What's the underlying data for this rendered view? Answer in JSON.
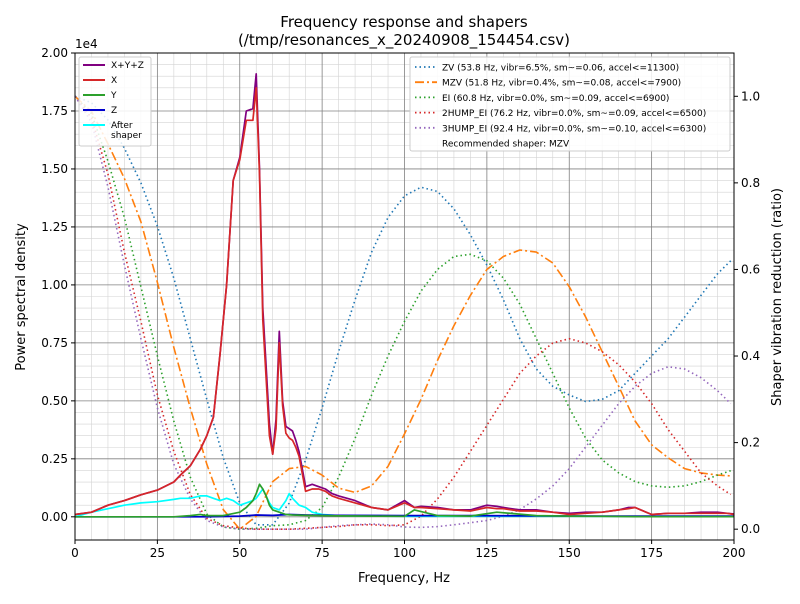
{
  "chart_data": {
    "type": "line",
    "title": "Frequency response and shapers",
    "subtitle": "(/tmp/resonances_x_20240908_154454.csv)",
    "xlabel": "Frequency, Hz",
    "ylabel": "Power spectral density",
    "y2label": "Shaper vibration reduction (ratio)",
    "y_offset_text": "1e4",
    "xlim": [
      0,
      200
    ],
    "ylim": [
      -1000,
      20000
    ],
    "y2lim": [
      -0.025,
      1.1
    ],
    "grid": true,
    "x_ticks": [
      "0",
      "25",
      "50",
      "75",
      "100",
      "125",
      "150",
      "175",
      "200"
    ],
    "y_ticks": [
      "0.00",
      "0.25",
      "0.50",
      "0.75",
      "1.00",
      "1.25",
      "1.50",
      "1.75",
      "2.00"
    ],
    "y2_ticks": [
      "0.0",
      "0.2",
      "0.4",
      "0.6",
      "0.8",
      "1.0"
    ],
    "legend_left_position": "upper left",
    "legend_right_position": "upper right",
    "series": [
      {
        "name": "X+Y+Z",
        "axis": "left",
        "color": "#800080",
        "dash": "solid",
        "x": [
          0,
          5,
          10,
          15,
          20,
          25,
          30,
          32,
          35,
          38,
          40,
          42,
          44,
          46,
          48,
          50,
          52,
          54,
          55,
          56,
          57,
          58,
          59,
          60,
          61,
          62,
          63,
          64,
          65,
          66,
          67,
          68,
          70,
          72,
          74,
          76,
          78,
          80,
          85,
          90,
          95,
          100,
          103,
          105,
          110,
          115,
          120,
          125,
          128,
          130,
          135,
          140,
          145,
          150,
          155,
          160,
          165,
          168,
          170,
          175,
          180,
          185,
          190,
          195,
          198,
          200
        ],
        "y": [
          100,
          200,
          500,
          700,
          950,
          1150,
          1500,
          1800,
          2200,
          2900,
          3500,
          4300,
          7000,
          10000,
          14500,
          15500,
          17500,
          17600,
          19100,
          15000,
          9000,
          6500,
          4000,
          2700,
          4200,
          8000,
          5000,
          3900,
          3800,
          3700,
          3300,
          2800,
          1300,
          1400,
          1300,
          1200,
          1000,
          900,
          700,
          400,
          300,
          700,
          400,
          450,
          400,
          300,
          300,
          500,
          450,
          400,
          300,
          300,
          200,
          150,
          200,
          200,
          300,
          400,
          400,
          100,
          150,
          150,
          200,
          200,
          150,
          120
        ]
      },
      {
        "name": "X",
        "axis": "left",
        "color": "#d62728",
        "dash": "solid",
        "x": [
          0,
          5,
          10,
          15,
          20,
          25,
          30,
          32,
          35,
          38,
          40,
          42,
          44,
          46,
          48,
          50,
          52,
          54,
          55,
          56,
          57,
          58,
          59,
          60,
          61,
          62,
          63,
          64,
          65,
          66,
          67,
          68,
          70,
          72,
          74,
          76,
          78,
          80,
          85,
          90,
          95,
          100,
          103,
          105,
          110,
          115,
          120,
          125,
          128,
          130,
          135,
          140,
          145,
          150,
          155,
          160,
          165,
          168,
          170,
          175,
          180,
          185,
          190,
          195,
          198,
          200
        ],
        "y": [
          100,
          200,
          500,
          700,
          950,
          1150,
          1500,
          1800,
          2200,
          2900,
          3500,
          4300,
          7000,
          10000,
          14500,
          15400,
          17100,
          17100,
          18500,
          14800,
          8500,
          6000,
          3500,
          2700,
          3800,
          7500,
          4800,
          3600,
          3400,
          3300,
          3000,
          2600,
          1100,
          1200,
          1200,
          1100,
          900,
          800,
          600,
          400,
          300,
          600,
          400,
          400,
          350,
          300,
          250,
          400,
          350,
          350,
          250,
          250,
          200,
          100,
          150,
          200,
          300,
          350,
          400,
          100,
          150,
          150,
          150,
          150,
          150,
          100
        ]
      },
      {
        "name": "Y",
        "axis": "left",
        "color": "#2ca02c",
        "dash": "solid",
        "x": [
          0,
          5,
          10,
          20,
          30,
          35,
          38,
          40,
          45,
          50,
          52,
          54,
          55,
          56,
          57,
          58,
          59,
          60,
          62,
          64,
          66,
          70,
          75,
          80,
          90,
          100,
          103,
          110,
          120,
          128,
          140,
          150,
          160,
          170,
          180,
          190,
          200
        ],
        "y": [
          0,
          0,
          0,
          0,
          0,
          50,
          100,
          50,
          50,
          200,
          400,
          700,
          1000,
          1400,
          1200,
          900,
          500,
          300,
          200,
          100,
          80,
          60,
          50,
          40,
          30,
          20,
          300,
          50,
          30,
          200,
          50,
          30,
          20,
          10,
          10,
          10,
          10
        ]
      },
      {
        "name": "Z",
        "axis": "left",
        "color": "#0000cd",
        "dash": "solid",
        "x": [
          0,
          20,
          40,
          50,
          55,
          60,
          65,
          70,
          80,
          100,
          120,
          140,
          160,
          180,
          200
        ],
        "y": [
          0,
          0,
          0,
          30,
          80,
          60,
          100,
          80,
          60,
          50,
          50,
          40,
          30,
          30,
          30
        ]
      },
      {
        "name": "After\nshaper",
        "axis": "left",
        "color": "#00ffff",
        "dash": "solid",
        "x": [
          0,
          5,
          10,
          15,
          20,
          25,
          30,
          32,
          35,
          38,
          40,
          42,
          44,
          46,
          48,
          50,
          52,
          54,
          55,
          56,
          57,
          58,
          59,
          60,
          62,
          64,
          65,
          66,
          68,
          70,
          72,
          75,
          80,
          90,
          100,
          110,
          120,
          130,
          140,
          150,
          160,
          170,
          180,
          190,
          200
        ],
        "y": [
          0,
          200,
          350,
          500,
          600,
          650,
          750,
          800,
          800,
          900,
          900,
          800,
          700,
          800,
          700,
          500,
          600,
          700,
          800,
          1000,
          1200,
          900,
          600,
          400,
          300,
          700,
          1000,
          800,
          500,
          400,
          200,
          100,
          50,
          30,
          20,
          20,
          20,
          20,
          20,
          20,
          20,
          20,
          10,
          10,
          10
        ]
      },
      {
        "name": "ZV (53.8 Hz, vibr=6.5%, sm~=0.06, accel<=11300)",
        "axis": "right",
        "color": "#1f77b4",
        "dash": "1.5,3",
        "x": [
          0,
          5,
          10,
          15,
          20,
          25,
          30,
          35,
          40,
          45,
          50,
          55,
          60,
          65,
          70,
          75,
          80,
          85,
          90,
          95,
          100,
          105,
          110,
          115,
          120,
          125,
          130,
          135,
          140,
          145,
          150,
          155,
          160,
          165,
          170,
          175,
          180,
          185,
          190,
          195,
          199
        ],
        "y": [
          1.0,
          0.985,
          0.945,
          0.88,
          0.8,
          0.7,
          0.58,
          0.44,
          0.3,
          0.165,
          0.06,
          0.01,
          0.01,
          0.06,
          0.16,
          0.28,
          0.41,
          0.53,
          0.64,
          0.72,
          0.77,
          0.79,
          0.78,
          0.74,
          0.68,
          0.61,
          0.53,
          0.44,
          0.37,
          0.33,
          0.31,
          0.295,
          0.3,
          0.32,
          0.36,
          0.4,
          0.44,
          0.49,
          0.54,
          0.59,
          0.62
        ]
      },
      {
        "name": "MZV (51.8 Hz, vibr=0.4%, sm~=0.08, accel<=7900)",
        "axis": "right",
        "color": "#ff7f0e",
        "dash": "9,3,2,3",
        "x": [
          0,
          5,
          10,
          15,
          20,
          25,
          30,
          35,
          40,
          45,
          50,
          55,
          60,
          65,
          70,
          75,
          80,
          85,
          90,
          95,
          100,
          105,
          110,
          115,
          120,
          125,
          130,
          135,
          140,
          145,
          150,
          155,
          160,
          165,
          170,
          175,
          180,
          185,
          190,
          195,
          199
        ],
        "y": [
          1.0,
          0.965,
          0.89,
          0.81,
          0.71,
          0.57,
          0.42,
          0.28,
          0.15,
          0.045,
          0.0,
          0.03,
          0.11,
          0.14,
          0.145,
          0.125,
          0.095,
          0.085,
          0.1,
          0.145,
          0.22,
          0.3,
          0.39,
          0.47,
          0.54,
          0.6,
          0.63,
          0.645,
          0.64,
          0.615,
          0.56,
          0.49,
          0.41,
          0.33,
          0.25,
          0.195,
          0.165,
          0.14,
          0.13,
          0.125,
          0.123
        ]
      },
      {
        "name": "EI (60.8 Hz, vibr=0.0%, sm~=0.09, accel<=6900)",
        "axis": "right",
        "color": "#2ca02c",
        "dash": "1.5,3",
        "x": [
          0,
          5,
          10,
          15,
          20,
          25,
          30,
          35,
          40,
          45,
          50,
          55,
          60,
          65,
          70,
          75,
          80,
          85,
          90,
          95,
          100,
          105,
          110,
          115,
          120,
          125,
          130,
          135,
          140,
          145,
          150,
          155,
          160,
          165,
          170,
          175,
          180,
          185,
          190,
          195,
          199
        ],
        "y": [
          1.0,
          0.96,
          0.85,
          0.72,
          0.56,
          0.4,
          0.25,
          0.12,
          0.035,
          0.005,
          0.0,
          0.002,
          0.008,
          0.01,
          0.02,
          0.05,
          0.12,
          0.21,
          0.31,
          0.4,
          0.48,
          0.55,
          0.6,
          0.63,
          0.635,
          0.62,
          0.58,
          0.52,
          0.44,
          0.36,
          0.28,
          0.21,
          0.16,
          0.13,
          0.11,
          0.1,
          0.097,
          0.1,
          0.11,
          0.125,
          0.135
        ]
      },
      {
        "name": "2HUMP_EI (76.2 Hz, vibr=0.0%, sm~=0.09, accel<=6500)",
        "axis": "right",
        "color": "#d62728",
        "dash": "1.5,3",
        "x": [
          0,
          5,
          10,
          15,
          20,
          25,
          30,
          35,
          40,
          45,
          50,
          55,
          60,
          65,
          70,
          75,
          80,
          85,
          90,
          95,
          100,
          105,
          110,
          115,
          120,
          125,
          130,
          135,
          140,
          145,
          150,
          155,
          160,
          165,
          170,
          175,
          180,
          185,
          190,
          195,
          199
        ],
        "y": [
          1.0,
          0.95,
          0.82,
          0.64,
          0.48,
          0.31,
          0.18,
          0.08,
          0.025,
          0.008,
          0.003,
          0.0,
          0.0,
          0.0,
          0.002,
          0.004,
          0.006,
          0.01,
          0.01,
          0.008,
          0.01,
          0.03,
          0.07,
          0.12,
          0.18,
          0.24,
          0.3,
          0.36,
          0.4,
          0.43,
          0.44,
          0.43,
          0.41,
          0.38,
          0.34,
          0.29,
          0.23,
          0.18,
          0.13,
          0.1,
          0.08
        ]
      },
      {
        "name": "3HUMP_EI (92.4 Hz, vibr=0.0%, sm~=0.10, accel<=6300)",
        "axis": "right",
        "color": "#9467bd",
        "dash": "1.5,3",
        "x": [
          0,
          5,
          10,
          15,
          20,
          25,
          30,
          35,
          40,
          45,
          50,
          55,
          60,
          65,
          70,
          75,
          80,
          85,
          90,
          95,
          100,
          105,
          110,
          115,
          120,
          125,
          130,
          135,
          140,
          145,
          150,
          155,
          160,
          165,
          170,
          175,
          180,
          185,
          190,
          195,
          199
        ],
        "y": [
          1.0,
          0.94,
          0.79,
          0.61,
          0.44,
          0.28,
          0.15,
          0.07,
          0.02,
          0.005,
          0.0,
          0.0,
          0.0,
          0.0,
          0.0,
          0.004,
          0.008,
          0.01,
          0.012,
          0.01,
          0.005,
          0.004,
          0.006,
          0.01,
          0.015,
          0.02,
          0.03,
          0.045,
          0.07,
          0.1,
          0.14,
          0.19,
          0.24,
          0.29,
          0.33,
          0.36,
          0.375,
          0.37,
          0.35,
          0.32,
          0.29
        ]
      }
    ],
    "annotation": "Recommended shaper: MZV"
  }
}
